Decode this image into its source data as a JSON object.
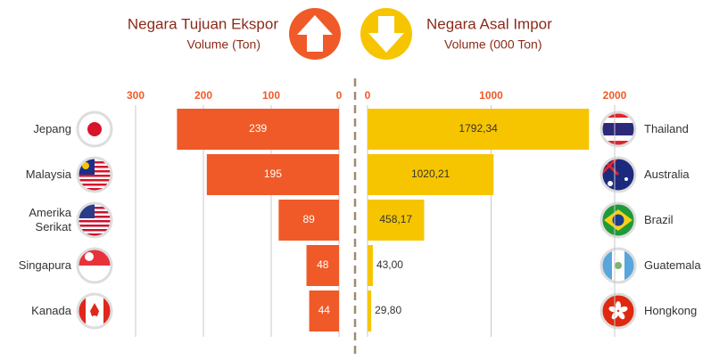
{
  "chart_data": [
    {
      "type": "bar",
      "orientation": "horizontal",
      "title": "Negara Tujuan Ekspor",
      "subtitle": "Volume (Ton)",
      "categories": [
        "Jepang",
        "Malaysia",
        "Amerika Serikat",
        "Singapura",
        "Kanada"
      ],
      "values": [
        239,
        195,
        89,
        48,
        44
      ],
      "color": "#f05a28",
      "xlim": [
        0,
        300
      ],
      "xticks": [
        300,
        200,
        100,
        0
      ],
      "xaxis_reversed": true,
      "grid": true
    },
    {
      "type": "bar",
      "orientation": "horizontal",
      "title": "Negara Asal  Impor",
      "subtitle": "Volume (000 Ton)",
      "categories": [
        "Thailand",
        "Australia",
        "Brazil",
        "Guatemala",
        "Hongkong"
      ],
      "values": [
        1792.34,
        1020.21,
        458.17,
        43.0,
        29.8
      ],
      "value_labels": [
        "1792,34",
        "1020,21",
        "458,17",
        "43,00",
        "29,80"
      ],
      "color": "#f7c500",
      "xlim": [
        0,
        2000
      ],
      "xticks": [
        0,
        1000,
        2000
      ],
      "xaxis_reversed": false,
      "grid": true
    }
  ]
}
